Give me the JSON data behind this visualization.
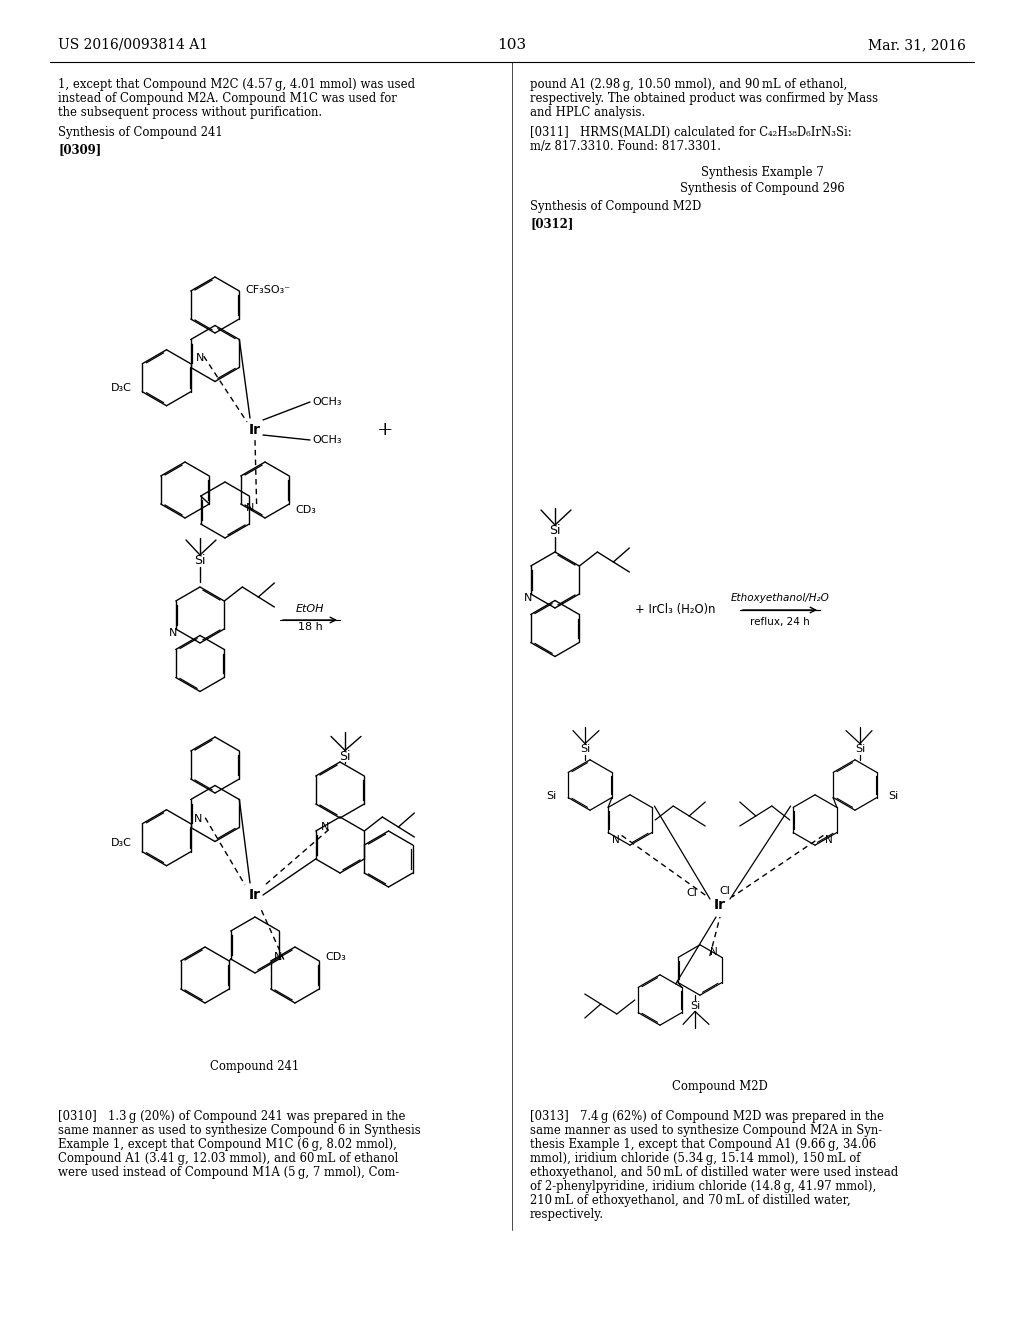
{
  "page_header_left": "US 2016/0093814 A1",
  "page_header_right": "Mar. 31, 2016",
  "page_number": "103",
  "bg_color": "#ffffff",
  "text_color": "#000000"
}
